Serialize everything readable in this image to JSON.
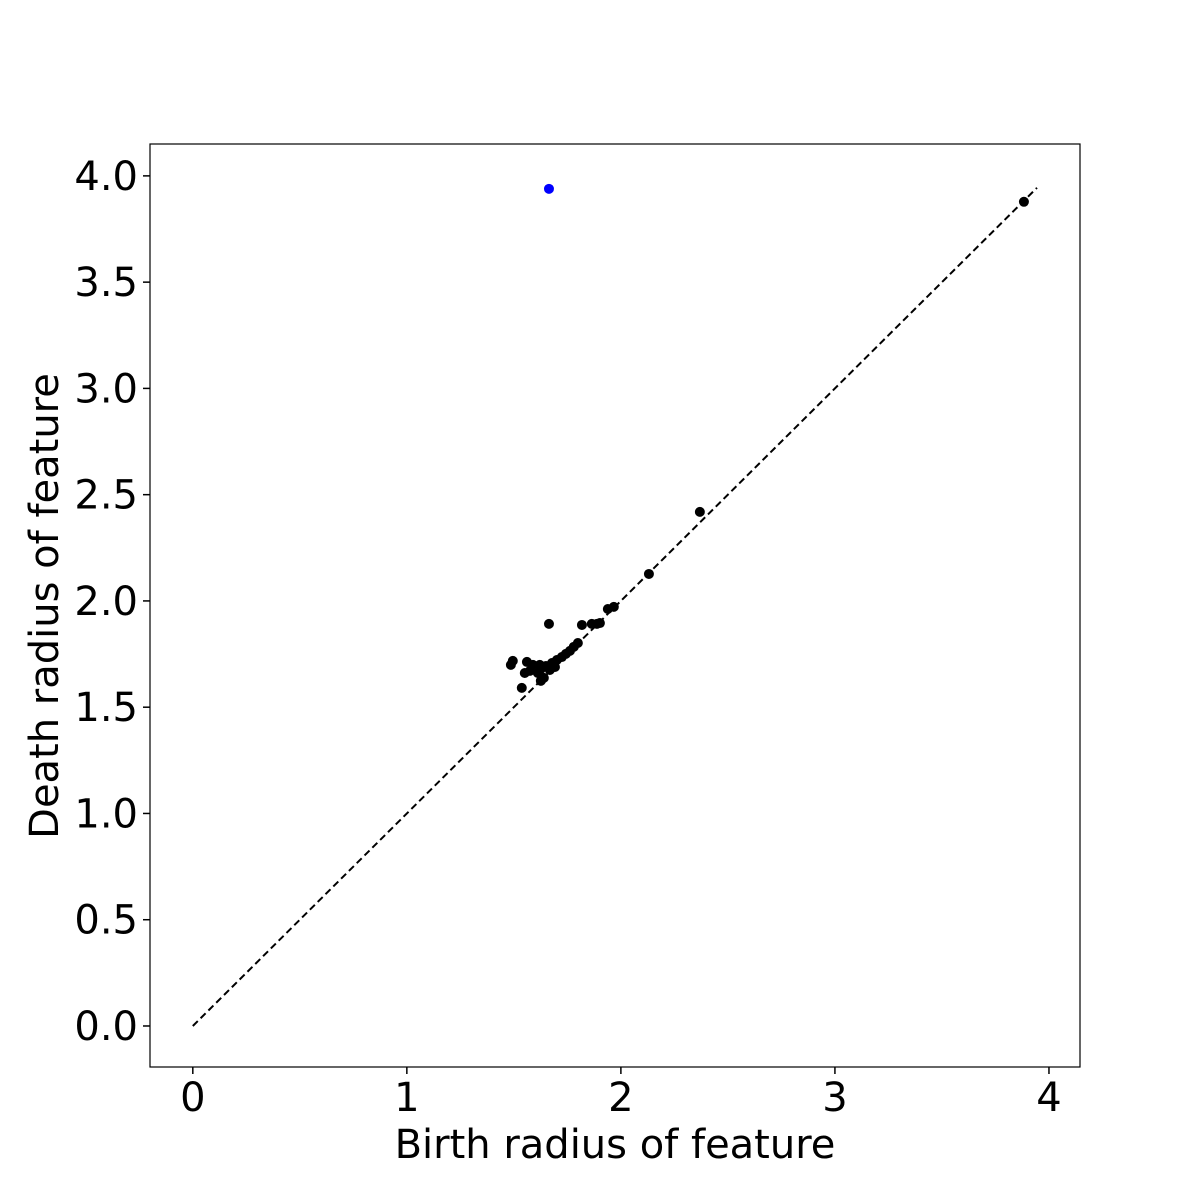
{
  "chart_data": {
    "type": "scatter",
    "x_label": "Birth radius of feature",
    "y_label": "Death radius of feature",
    "xlim": [
      -0.2,
      4.145
    ],
    "ylim": [
      -0.193,
      4.15
    ],
    "xticks": [
      0,
      1,
      2,
      3,
      4
    ],
    "yticks": [
      {
        "value": 0,
        "label": "0.0"
      },
      0.5,
      {
        "value": 1,
        "label": "1.0"
      },
      1.5,
      {
        "value": 2,
        "label": "2.0"
      },
      2.5,
      {
        "value": 3,
        "label": "3.0"
      },
      3.5,
      {
        "value": 4,
        "label": "4.0"
      }
    ],
    "series": [
      {
        "type": "line",
        "color": "#000000",
        "dashed": true,
        "x": [
          0,
          3.944
        ],
        "y": [
          0,
          3.944
        ]
      },
      {
        "type": "scatter",
        "color": "#000000",
        "x": [
          3.883,
          2.369,
          2.131,
          1.967,
          1.939,
          1.664,
          1.818,
          1.864,
          1.888,
          1.902,
          1.799,
          1.78,
          1.762,
          1.743,
          1.724,
          1.701,
          1.678,
          1.65,
          1.626,
          1.486,
          1.495,
          1.561,
          1.589,
          1.551,
          1.612,
          1.537,
          1.626,
          1.64,
          1.668,
          1.692,
          1.575,
          1.621
        ],
        "y": [
          3.878,
          2.419,
          2.127,
          1.972,
          1.962,
          1.892,
          1.887,
          1.892,
          1.892,
          1.896,
          1.802,
          1.784,
          1.765,
          1.751,
          1.736,
          1.722,
          1.708,
          1.694,
          1.68,
          1.699,
          1.718,
          1.713,
          1.699,
          1.661,
          1.661,
          1.591,
          1.624,
          1.638,
          1.675,
          1.689,
          1.671,
          1.699
        ]
      },
      {
        "type": "scatter",
        "color": "#0000ff",
        "x": [
          1.664
        ],
        "y": [
          3.939
        ]
      }
    ]
  }
}
